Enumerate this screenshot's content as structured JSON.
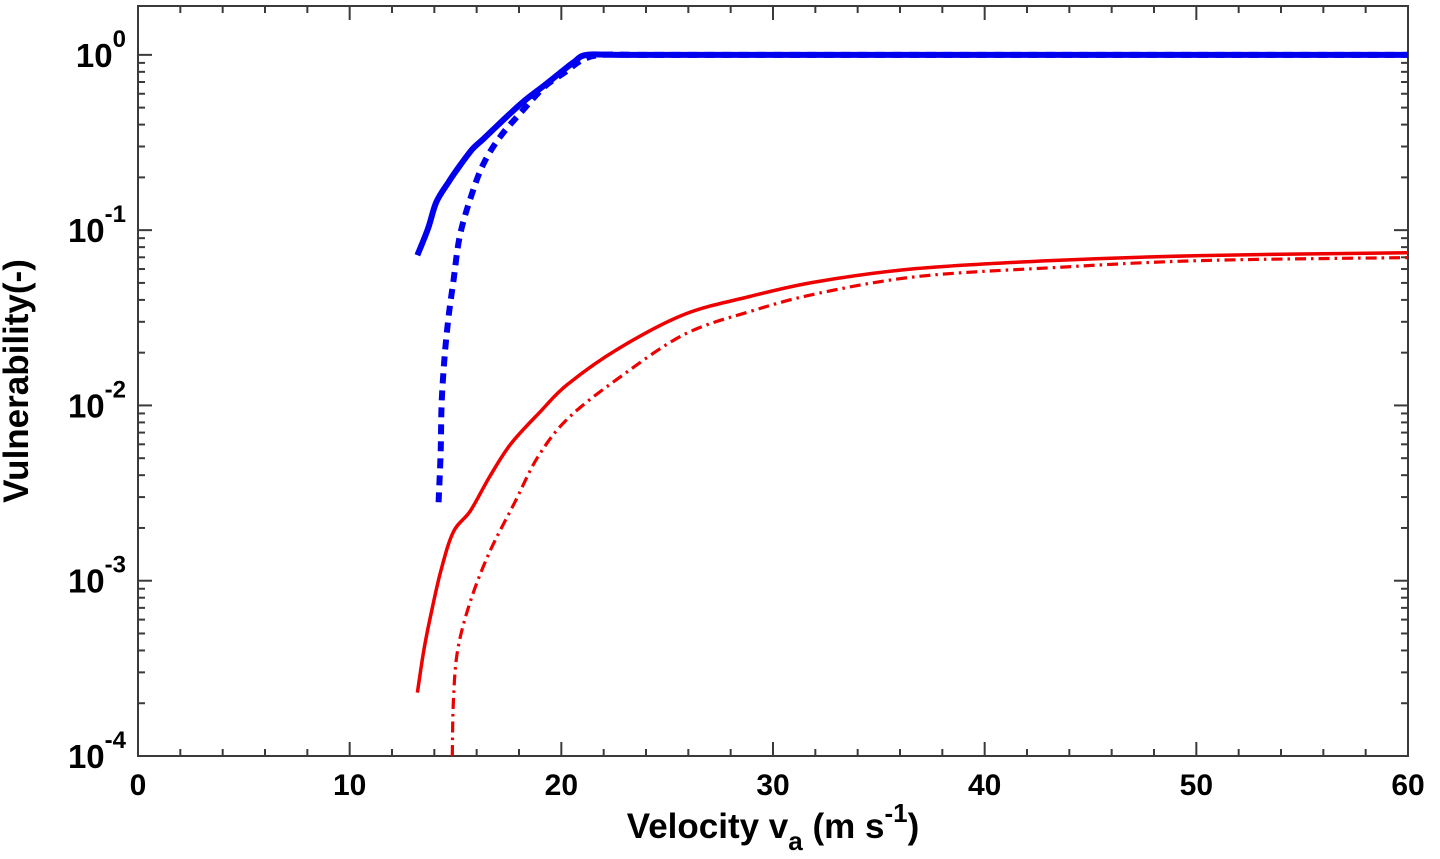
{
  "chart_data": {
    "type": "line",
    "title": "",
    "ylabel": "Vulnerability(-)",
    "xlabel_parts": [
      {
        "t": "Velocity v",
        "style": "normal"
      },
      {
        "t": "a",
        "style": "sub"
      },
      {
        "t": " (m s",
        "style": "normal"
      },
      {
        "t": "-1",
        "style": "sup"
      },
      {
        "t": ")",
        "style": "normal"
      }
    ],
    "xlim": [
      0,
      60
    ],
    "ylim_log": [
      0.0001,
      1.9
    ],
    "x_major_ticks": [
      0,
      10,
      20,
      30,
      40,
      50,
      60
    ],
    "x_minor_step": 2,
    "y_major_exponents": [
      0,
      -1,
      -2,
      -3,
      -4
    ],
    "grid": false,
    "legend_position": "none",
    "axis_color": "#3a3a3a",
    "label_color": "#000000",
    "series": [
      {
        "name": "blue-solid-thick",
        "color": "#0000ee",
        "width": 6,
        "dash": null,
        "points": [
          [
            13.2,
            0.072
          ],
          [
            13.7,
            0.102
          ],
          [
            14.1,
            0.145
          ],
          [
            14.7,
            0.19
          ],
          [
            15.1,
            0.224
          ],
          [
            15.8,
            0.29
          ],
          [
            16.3,
            0.33
          ],
          [
            17.3,
            0.43
          ],
          [
            18.2,
            0.54
          ],
          [
            19.2,
            0.67
          ],
          [
            20.0,
            0.8
          ],
          [
            20.6,
            0.91
          ],
          [
            21.2,
            1.0
          ],
          [
            23.0,
            1.0
          ],
          [
            30.0,
            1.0
          ],
          [
            45.0,
            1.0
          ],
          [
            60.0,
            1.0
          ]
        ]
      },
      {
        "name": "blue-dashed-thick",
        "color": "#0000ee",
        "width": 6,
        "dash": "10 7",
        "points": [
          [
            14.2,
            0.0028
          ],
          [
            14.3,
            0.0055
          ],
          [
            14.35,
            0.0105
          ],
          [
            14.5,
            0.02
          ],
          [
            14.7,
            0.034
          ],
          [
            14.9,
            0.051
          ],
          [
            15.2,
            0.092
          ],
          [
            15.7,
            0.151
          ],
          [
            16.3,
            0.236
          ],
          [
            17.1,
            0.34
          ],
          [
            18.1,
            0.47
          ],
          [
            19.2,
            0.657
          ],
          [
            20.2,
            0.8
          ],
          [
            21.0,
            0.937
          ],
          [
            21.9,
            1.0
          ],
          [
            24.0,
            1.0
          ],
          [
            30.0,
            1.0
          ],
          [
            45.0,
            1.0
          ],
          [
            60.0,
            1.0
          ]
        ]
      },
      {
        "name": "red-solid",
        "color": "#ee0000",
        "width": 3.5,
        "dash": null,
        "points": [
          [
            13.2,
            0.00023
          ],
          [
            13.5,
            0.0004
          ],
          [
            13.8,
            0.00061
          ],
          [
            14.3,
            0.00113
          ],
          [
            14.9,
            0.0019
          ],
          [
            15.7,
            0.0025
          ],
          [
            16.6,
            0.0039
          ],
          [
            17.6,
            0.006
          ],
          [
            19.0,
            0.0092
          ],
          [
            20.3,
            0.0132
          ],
          [
            22.7,
            0.0211
          ],
          [
            25.8,
            0.033
          ],
          [
            28.9,
            0.0418
          ],
          [
            32.1,
            0.0509
          ],
          [
            36.8,
            0.0604
          ],
          [
            43.1,
            0.067
          ],
          [
            50.2,
            0.0716
          ],
          [
            60.0,
            0.0744
          ]
        ]
      },
      {
        "name": "red-dash-dot",
        "color": "#ee0000",
        "width": 3.2,
        "dash": "11 5 2.5 5",
        "points": [
          [
            14.85,
            0.0001
          ],
          [
            14.9,
            0.000206
          ],
          [
            15.1,
            0.0004
          ],
          [
            15.7,
            0.00076
          ],
          [
            16.6,
            0.00145
          ],
          [
            17.8,
            0.0028
          ],
          [
            18.9,
            0.0051
          ],
          [
            20.3,
            0.0084
          ],
          [
            22.7,
            0.0143
          ],
          [
            25.8,
            0.0254
          ],
          [
            28.9,
            0.0343
          ],
          [
            32.1,
            0.0435
          ],
          [
            36.8,
            0.0543
          ],
          [
            43.1,
            0.061
          ],
          [
            50.2,
            0.067
          ],
          [
            60.0,
            0.0697
          ]
        ]
      }
    ]
  }
}
